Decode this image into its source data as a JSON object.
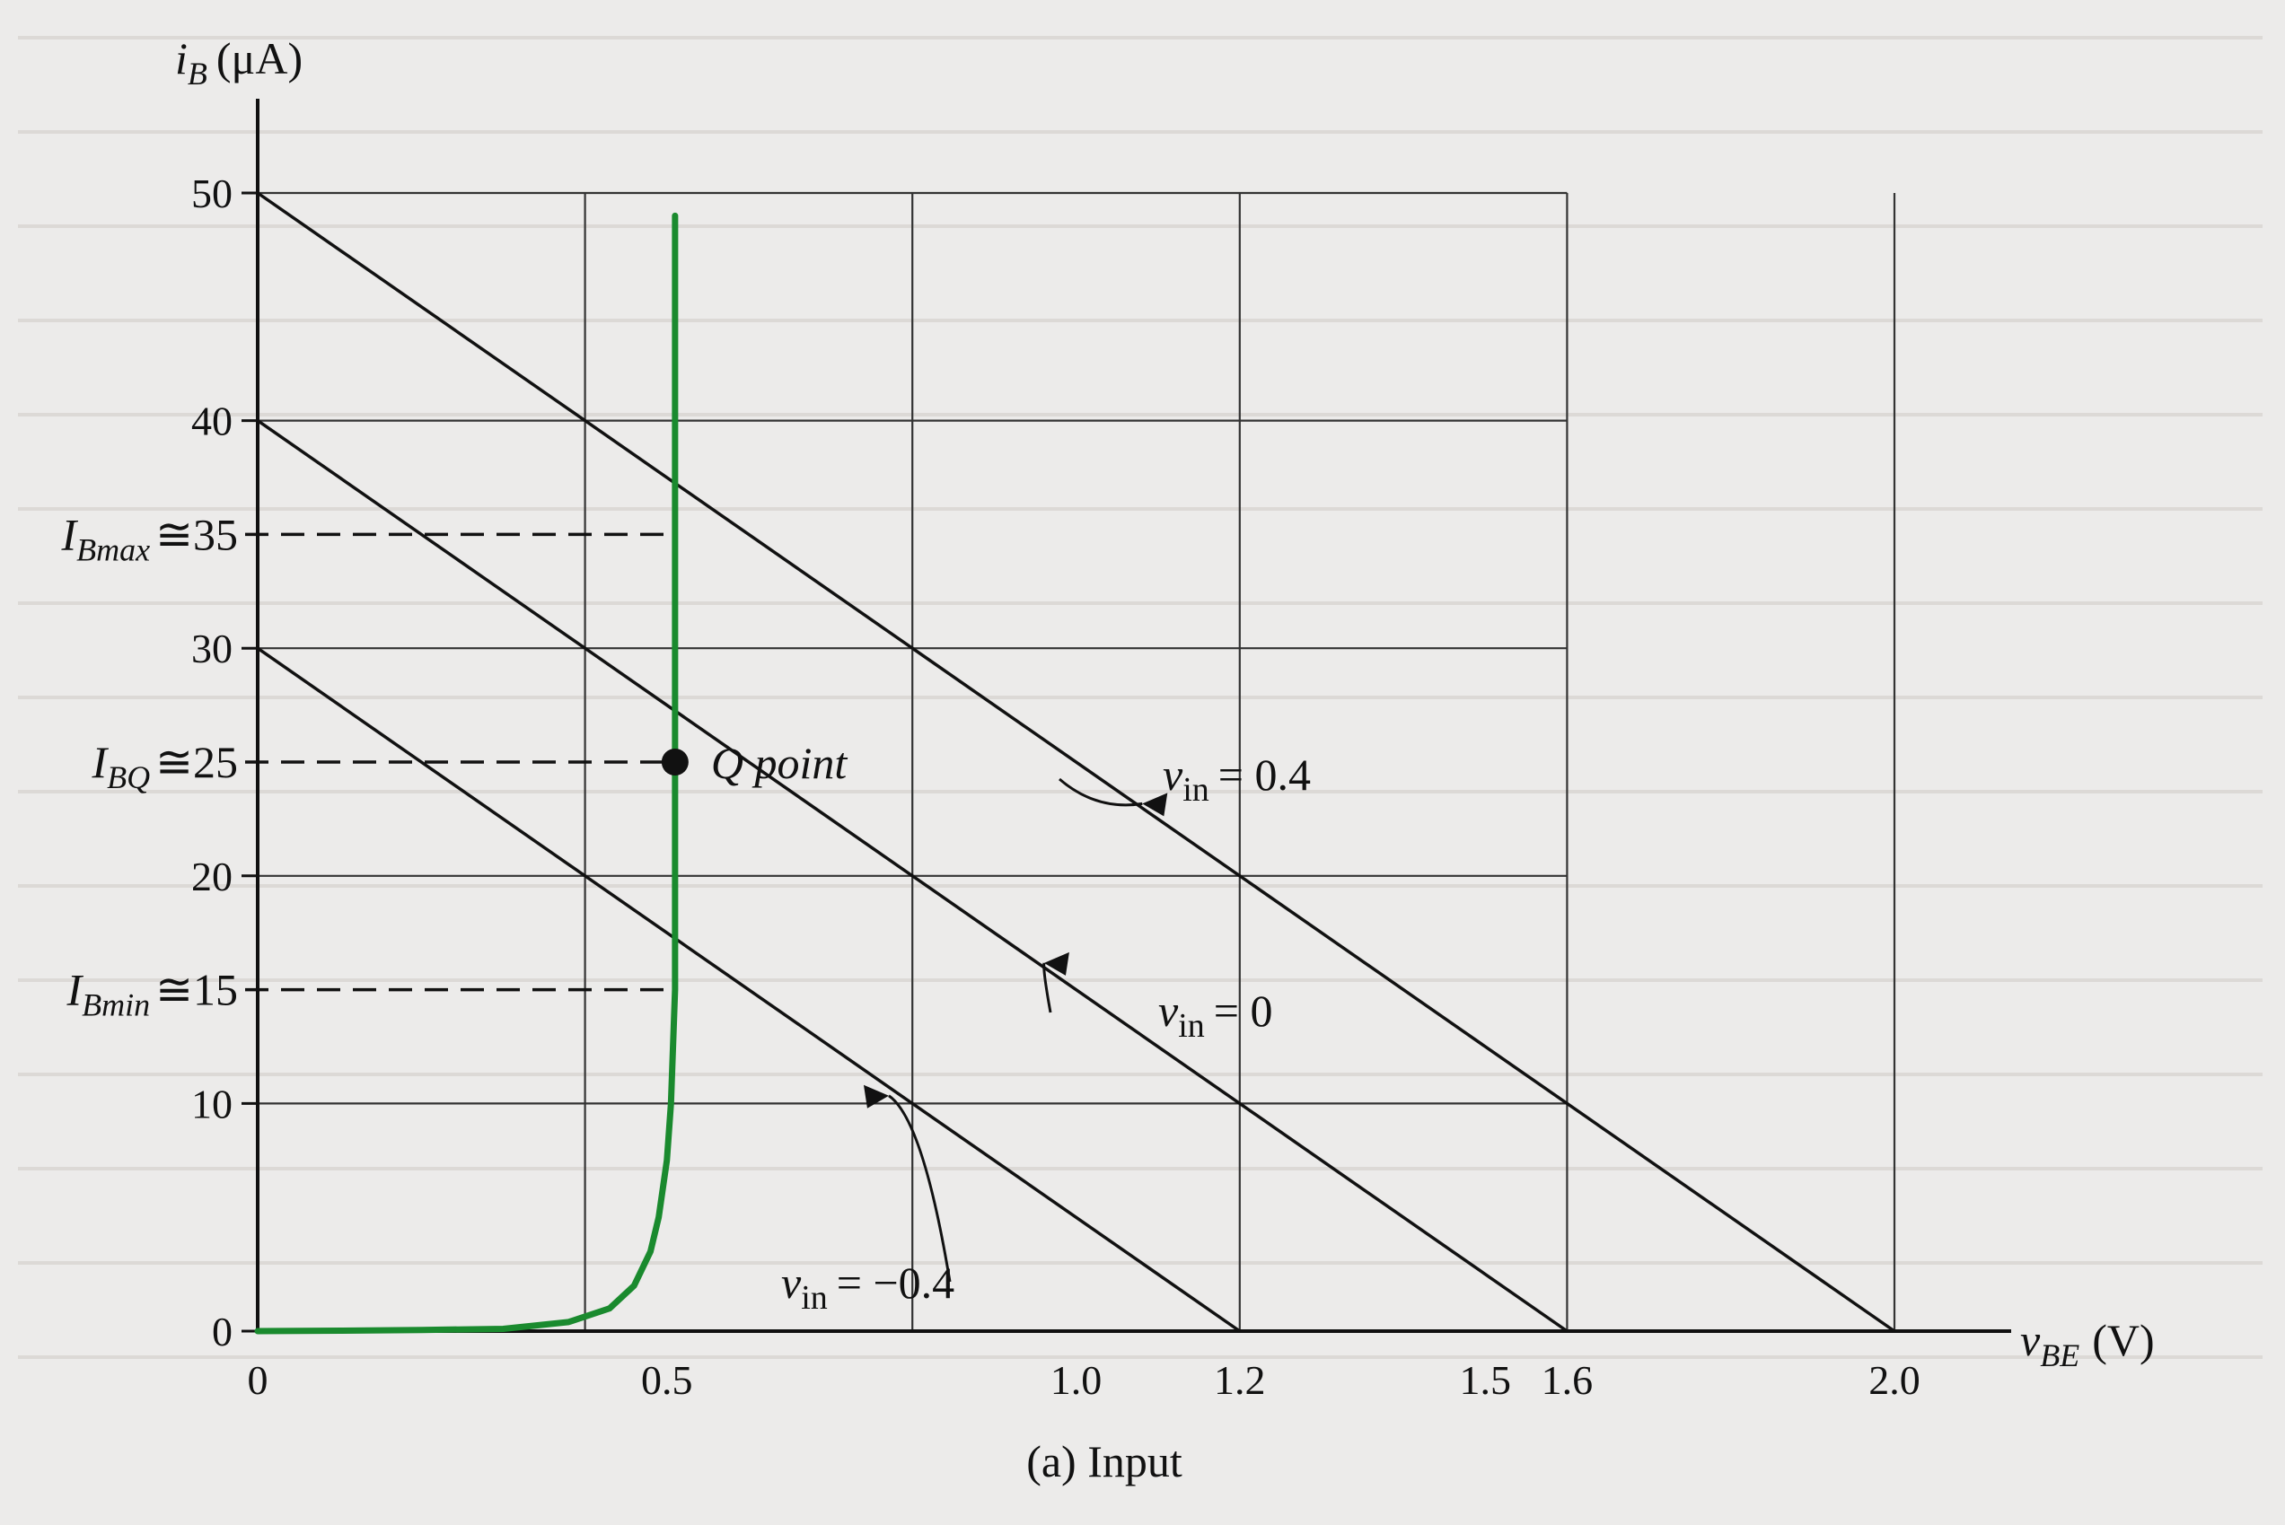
{
  "chart_data": {
    "type": "line",
    "caption": "(a) Input",
    "xlabel": "v",
    "xlabel_sub": "BE",
    "xlabel_unit": "(V)",
    "ylabel": "i",
    "ylabel_sub": "B",
    "ylabel_unit": "(μA)",
    "xlim": [
      0,
      2.0
    ],
    "ylim": [
      0,
      50
    ],
    "grid": true,
    "x_ticks": [
      {
        "value": 0,
        "label": "0"
      },
      {
        "value": 0.5,
        "label": "0.5"
      },
      {
        "value": 1.0,
        "label": "1.0"
      },
      {
        "value": 1.2,
        "label": "1.2"
      },
      {
        "value": 1.5,
        "label": "1.5"
      },
      {
        "value": 1.6,
        "label": "1.6"
      },
      {
        "value": 2.0,
        "label": "2.0"
      }
    ],
    "y_ticks": [
      {
        "value": 0,
        "label": "0"
      },
      {
        "value": 10,
        "label": "10"
      },
      {
        "value": 20,
        "label": "20"
      },
      {
        "value": 30,
        "label": "30"
      },
      {
        "value": 40,
        "label": "40"
      },
      {
        "value": 50,
        "label": "50"
      }
    ],
    "grid_x": [
      0.4,
      0.8,
      1.2,
      1.6,
      2.0
    ],
    "grid_y": [
      10,
      20,
      30,
      40,
      50
    ],
    "characteristic": {
      "color": "#1a8a2e",
      "points": [
        [
          0.0,
          0.0
        ],
        [
          0.1,
          0.02
        ],
        [
          0.2,
          0.05
        ],
        [
          0.3,
          0.1
        ],
        [
          0.38,
          0.4
        ],
        [
          0.43,
          1.0
        ],
        [
          0.46,
          2.0
        ],
        [
          0.48,
          3.5
        ],
        [
          0.49,
          5.0
        ],
        [
          0.5,
          7.5
        ],
        [
          0.505,
          10.0
        ],
        [
          0.508,
          13.0
        ],
        [
          0.51,
          15.0
        ],
        [
          0.51,
          20.0
        ],
        [
          0.51,
          25.0
        ],
        [
          0.51,
          30.0
        ],
        [
          0.51,
          35.0
        ],
        [
          0.51,
          40.0
        ],
        [
          0.51,
          49.0
        ]
      ]
    },
    "load_lines": [
      {
        "label": "v",
        "label_sub": "in",
        "label_value": "= 0.4",
        "points": [
          [
            0,
            50
          ],
          [
            2.0,
            0
          ]
        ]
      },
      {
        "label": "v",
        "label_sub": "in",
        "label_value": "= 0",
        "points": [
          [
            0,
            40
          ],
          [
            1.6,
            0
          ]
        ]
      },
      {
        "label": "v",
        "label_sub": "in",
        "label_value": "= −0.4",
        "points": [
          [
            0,
            30
          ],
          [
            1.2,
            0
          ]
        ]
      }
    ],
    "q_point": {
      "x": 0.51,
      "y": 25,
      "label": "Q point"
    },
    "reference_levels": [
      {
        "name": "I",
        "sub": "Bmax",
        "text": "≅35",
        "y": 35,
        "x_end": 0.51
      },
      {
        "name": "I",
        "sub": "BQ",
        "text": "≅25",
        "y": 25,
        "x_end": 0.51
      },
      {
        "name": "I",
        "sub": "Bmin",
        "text": "≅15",
        "y": 15,
        "x_end": 0.51
      }
    ]
  }
}
